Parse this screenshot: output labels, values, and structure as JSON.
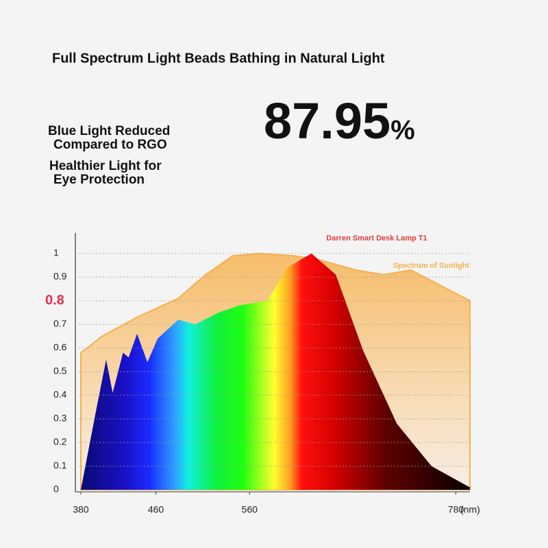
{
  "title": "Full Spectrum Light Beads Bathing in Natural Light",
  "headline": "87.95",
  "headline_unit": "%",
  "notes": [
    "Blue Light Reduced",
    "Compared to RGO",
    "Healthier Light for",
    "Eye Protection"
  ],
  "chart_data": {
    "type": "area",
    "x_unit": "(nm)",
    "xlim": [
      380,
      795
    ],
    "xticks": [
      380,
      460,
      560,
      780
    ],
    "ylim": [
      0,
      1
    ],
    "yticks": [
      0,
      0.1,
      0.2,
      0.3,
      0.4,
      0.5,
      0.6,
      0.7,
      0.8,
      0.9,
      1
    ],
    "highlighted_ytick": 0.8,
    "highlight_color": "#e0304a",
    "grid": true,
    "series": [
      {
        "name": "Spectrum of Sunlight",
        "color": "#f2b24d",
        "x": [
          380,
          403,
          440,
          484,
          513,
          542,
          571,
          608,
          637,
          673,
          703,
          732,
          761,
          795
        ],
        "values": [
          0.58,
          0.65,
          0.73,
          0.81,
          0.91,
          0.99,
          1.0,
          0.99,
          0.97,
          0.93,
          0.91,
          0.93,
          0.87,
          0.8
        ]
      },
      {
        "name": "Darren Smart Desk Lamp T1",
        "color": "#e23a3a",
        "x": [
          380,
          396,
          407,
          414,
          425,
          431,
          440,
          451,
          462,
          484,
          502,
          527,
          549,
          579,
          600,
          626,
          652,
          681,
          717,
          754,
          795
        ],
        "values": [
          0,
          0.33,
          0.55,
          0.41,
          0.58,
          0.56,
          0.66,
          0.54,
          0.64,
          0.72,
          0.7,
          0.75,
          0.78,
          0.8,
          0.94,
          1.0,
          0.91,
          0.59,
          0.28,
          0.1,
          0.01
        ]
      }
    ]
  }
}
